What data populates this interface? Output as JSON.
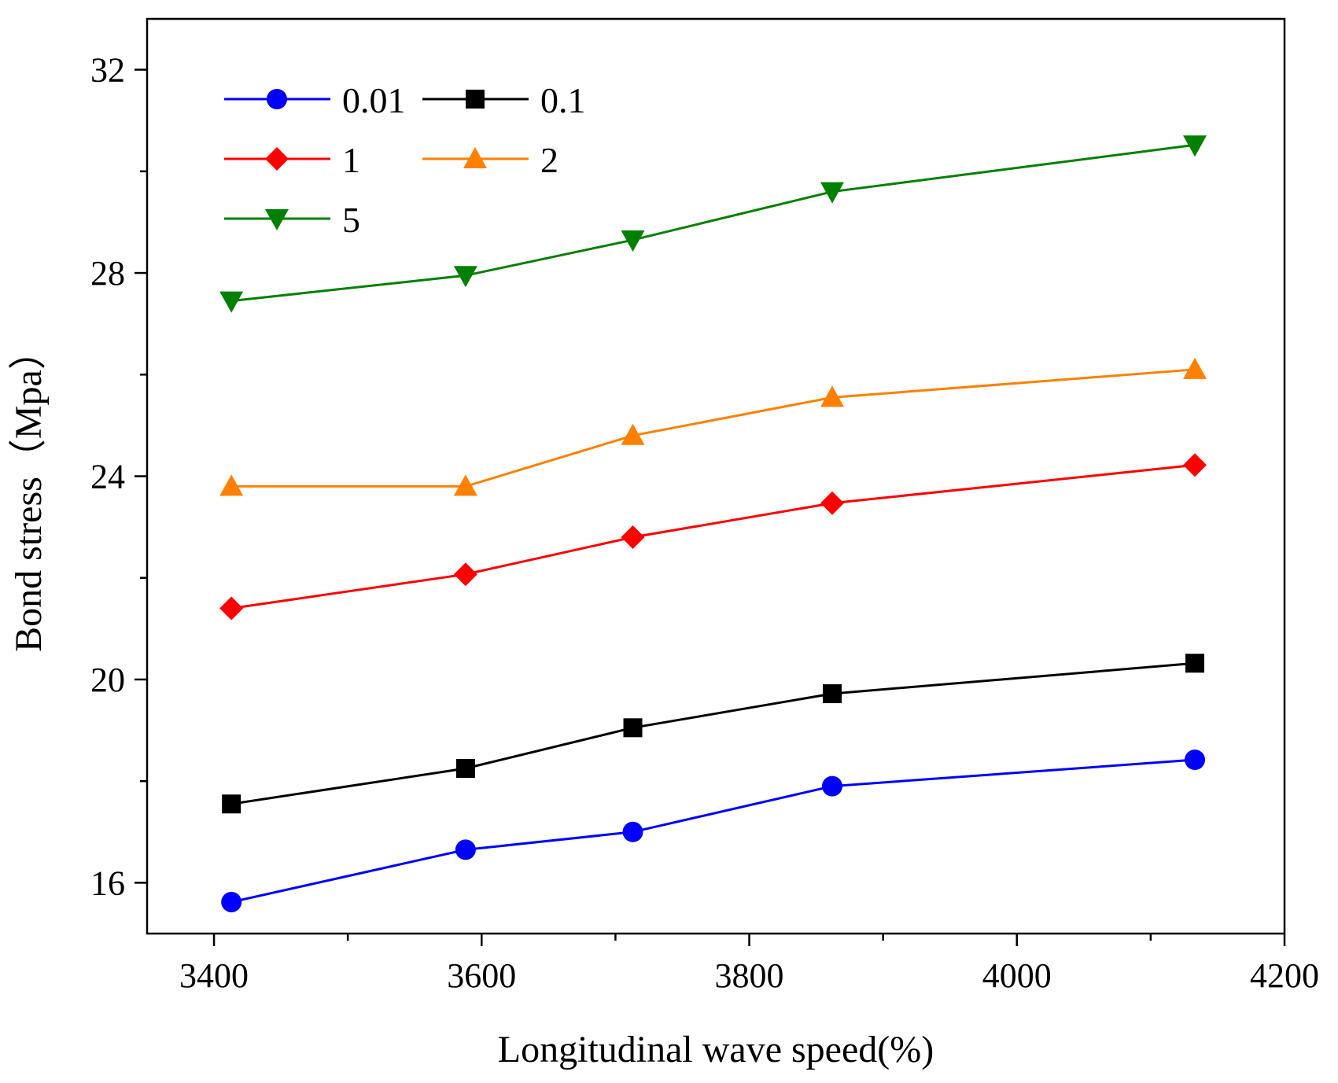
{
  "chart_data": {
    "type": "line",
    "xlabel": "Longitudinal wave speed(%)",
    "ylabel": "Bond stress（Mpa）",
    "xlim": [
      3350,
      4200
    ],
    "ylim": [
      15,
      33
    ],
    "xticks": [
      3400,
      3600,
      3800,
      4000,
      4200
    ],
    "xticks_labels": [
      "3400",
      "3600",
      "3800",
      "4000",
      "4200"
    ],
    "yticks": [
      16,
      20,
      24,
      28,
      32
    ],
    "yticks_labels": [
      "16",
      "20",
      "24",
      "28",
      "32"
    ],
    "x": [
      3413,
      3588,
      3713,
      3862,
      4133
    ],
    "series": [
      {
        "name": "0.01",
        "color": "#0000ff",
        "marker": "circle",
        "values": [
          15.62,
          16.65,
          17.0,
          17.9,
          18.42
        ]
      },
      {
        "name": "0.1",
        "color": "#000000",
        "marker": "square",
        "values": [
          17.55,
          18.25,
          19.05,
          19.72,
          20.32
        ]
      },
      {
        "name": "1",
        "color": "#ff0000",
        "marker": "diamond",
        "values": [
          21.4,
          22.07,
          22.8,
          23.47,
          24.22
        ]
      },
      {
        "name": "2",
        "color": "#ff8000",
        "marker": "triangle-up",
        "values": [
          23.8,
          23.8,
          24.8,
          25.55,
          26.1
        ]
      },
      {
        "name": "5",
        "color": "#008000",
        "marker": "triangle-down",
        "values": [
          27.45,
          27.95,
          28.65,
          29.6,
          30.52
        ]
      }
    ],
    "legend": {
      "placement": "top-left",
      "columns": 2
    },
    "grid": false
  }
}
